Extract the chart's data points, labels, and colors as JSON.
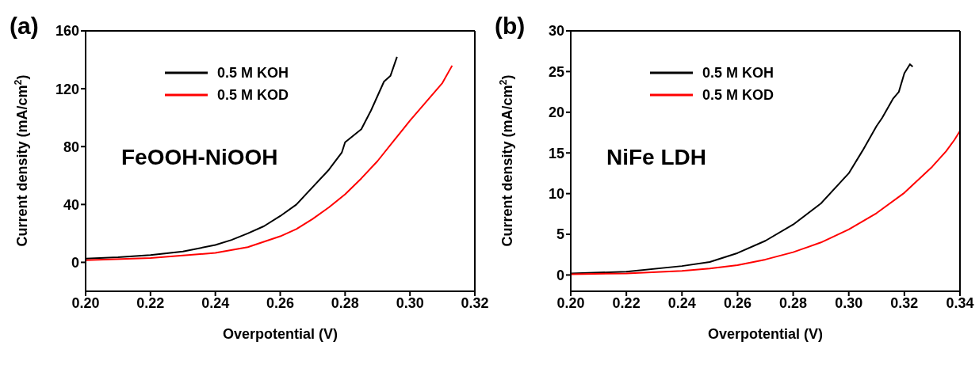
{
  "chart_data": [
    {
      "type": "line",
      "title": "(a)",
      "xlabel": "Overpotential (V)",
      "ylabel": "Current density (mA/cm$^{2}$)",
      "annotations": [
        "FeOOH-NiOOH"
      ],
      "xlim": [
        0.2,
        0.32
      ],
      "xticks": [
        {
          "value": 0.2,
          "label": "0.20"
        },
        {
          "value": 0.22,
          "label": "0.22"
        },
        {
          "value": 0.24,
          "label": "0.24"
        },
        {
          "value": 0.26,
          "label": "0.26"
        },
        {
          "value": 0.28,
          "label": "0.28"
        },
        {
          "value": 0.3,
          "label": "0.30"
        },
        {
          "value": 0.32,
          "label": "0.32"
        }
      ],
      "ylim": [
        -20,
        160
      ],
      "yticks": [
        0,
        40,
        80,
        120,
        160
      ],
      "grid": false,
      "legend": "top",
      "marker": "none",
      "line_style": "solid",
      "series": [
        {
          "name": "0.5 M KOH",
          "color": "#000000",
          "x": [
            0.2,
            0.21,
            0.22,
            0.23,
            0.24,
            0.245,
            0.25,
            0.255,
            0.26,
            0.265,
            0.27,
            0.275,
            0.279,
            0.28,
            0.285,
            0.288,
            0.29,
            0.292,
            0.294,
            0.296
          ],
          "values": [
            2.5,
            3.5,
            5,
            7.5,
            12,
            15.5,
            20,
            25,
            32,
            40,
            52,
            64,
            76,
            83,
            92,
            105,
            115,
            125,
            129,
            142
          ]
        },
        {
          "name": "0.5 M KOD",
          "color": "#ff0000",
          "x": [
            0.2,
            0.22,
            0.24,
            0.25,
            0.26,
            0.265,
            0.27,
            0.275,
            0.28,
            0.285,
            0.29,
            0.295,
            0.3,
            0.305,
            0.31,
            0.313
          ],
          "values": [
            1.5,
            3,
            6.5,
            10.5,
            18,
            23,
            30,
            38,
            47,
            58,
            70,
            84,
            98,
            111,
            124,
            136
          ]
        }
      ]
    },
    {
      "type": "line",
      "title": "(b)",
      "xlabel": "Overpotential (V)",
      "ylabel": "Current density (mA/cm$^{2}$)",
      "annotations": [
        "NiFe LDH"
      ],
      "xlim": [
        0.2,
        0.34
      ],
      "xticks": [
        {
          "value": 0.2,
          "label": "0.20"
        },
        {
          "value": 0.22,
          "label": "0.22"
        },
        {
          "value": 0.24,
          "label": "0.24"
        },
        {
          "value": 0.26,
          "label": "0.26"
        },
        {
          "value": 0.28,
          "label": "0.28"
        },
        {
          "value": 0.3,
          "label": "0.30"
        },
        {
          "value": 0.32,
          "label": "0.32"
        },
        {
          "value": 0.34,
          "label": "0.34"
        }
      ],
      "ylim": [
        -2,
        30
      ],
      "yticks": [
        0,
        5,
        10,
        15,
        20,
        25,
        30
      ],
      "grid": false,
      "legend": "top",
      "marker": "none",
      "line_style": "solid",
      "series": [
        {
          "name": "0.5 M KOH",
          "color": "#000000",
          "x": [
            0.2,
            0.22,
            0.24,
            0.25,
            0.26,
            0.27,
            0.28,
            0.29,
            0.3,
            0.305,
            0.31,
            0.312,
            0.316,
            0.318,
            0.32,
            0.322,
            0.323
          ],
          "values": [
            0.2,
            0.4,
            1.1,
            1.6,
            2.7,
            4.2,
            6.2,
            8.8,
            12.5,
            15.3,
            18.3,
            19.3,
            21.7,
            22.5,
            24.8,
            25.9,
            25.6
          ]
        },
        {
          "name": "0.5 M KOD",
          "color": "#ff0000",
          "x": [
            0.2,
            0.22,
            0.24,
            0.25,
            0.26,
            0.27,
            0.28,
            0.29,
            0.3,
            0.31,
            0.32,
            0.33,
            0.335,
            0.338,
            0.34
          ],
          "values": [
            0.1,
            0.2,
            0.5,
            0.8,
            1.2,
            1.9,
            2.8,
            4.0,
            5.6,
            7.6,
            10.1,
            13.3,
            15.2,
            16.6,
            17.7
          ]
        }
      ]
    }
  ]
}
